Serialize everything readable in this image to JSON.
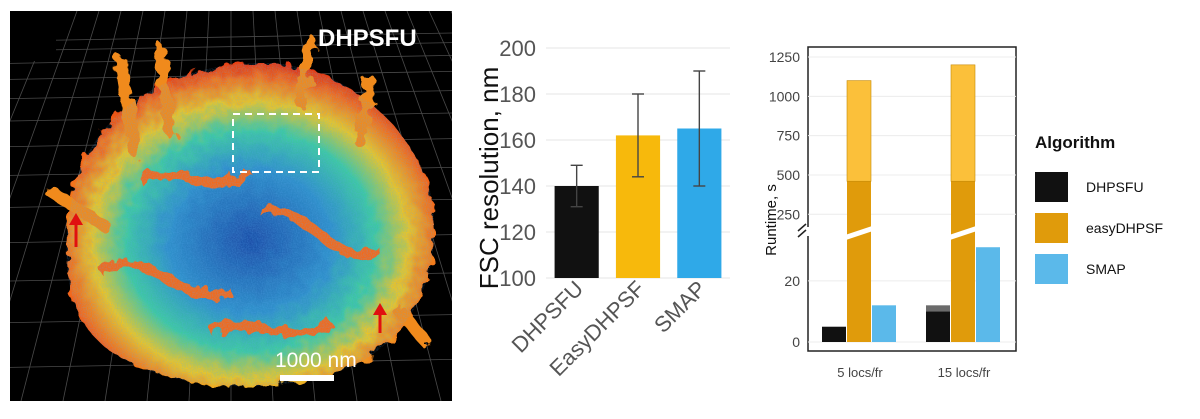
{
  "image_panel": {
    "label": "DHPSFU",
    "scale_bar_label": "1000 nm"
  },
  "chart_data": [
    {
      "type": "bar",
      "categories": [
        "DHPSFU",
        "EasyDHPSF",
        "SMAP"
      ],
      "values": [
        140,
        162,
        165
      ],
      "error_low": [
        131,
        144,
        140
      ],
      "error_high": [
        149,
        180,
        190
      ],
      "colors": [
        "#111111",
        "#f7b90c",
        "#2fa9e8"
      ],
      "title": "",
      "xlabel": "",
      "ylabel": "FSC resolution, nm",
      "ylim": [
        100,
        200
      ],
      "yticks": [
        100,
        120,
        140,
        160,
        180,
        200
      ],
      "grid": true
    },
    {
      "type": "bar",
      "stacked": true,
      "broken_axis": true,
      "categories": [
        "5 locs/fr",
        "15 locs/fr"
      ],
      "series": [
        {
          "name": "DHPSFU",
          "values": [
            5,
            10
          ],
          "extra_values": [
            0,
            2
          ]
        },
        {
          "name": "easyDHPSF",
          "values": [
            1100,
            1200
          ],
          "lighter_from": 460
        },
        {
          "name": "SMAP",
          "values": [
            12,
            31
          ]
        }
      ],
      "colors": {
        "DHPSFU": "#111111",
        "easyDHPSF": "#e09b0b",
        "easyDHPSF_light": "#fbc03a",
        "SMAP": "#5bb9ea"
      },
      "ylabel": "Runtime, s",
      "yticks_lower": [
        0,
        20
      ],
      "yticks_upper": [
        250,
        500,
        750,
        1000,
        1250
      ],
      "lower_range": [
        0,
        35
      ],
      "upper_range": [
        150,
        1250
      ],
      "grid": true,
      "legend": {
        "title": "Algorithm",
        "entries": [
          "DHPSFU",
          "easyDHPSF",
          "SMAP"
        ],
        "placement": "right"
      }
    }
  ]
}
